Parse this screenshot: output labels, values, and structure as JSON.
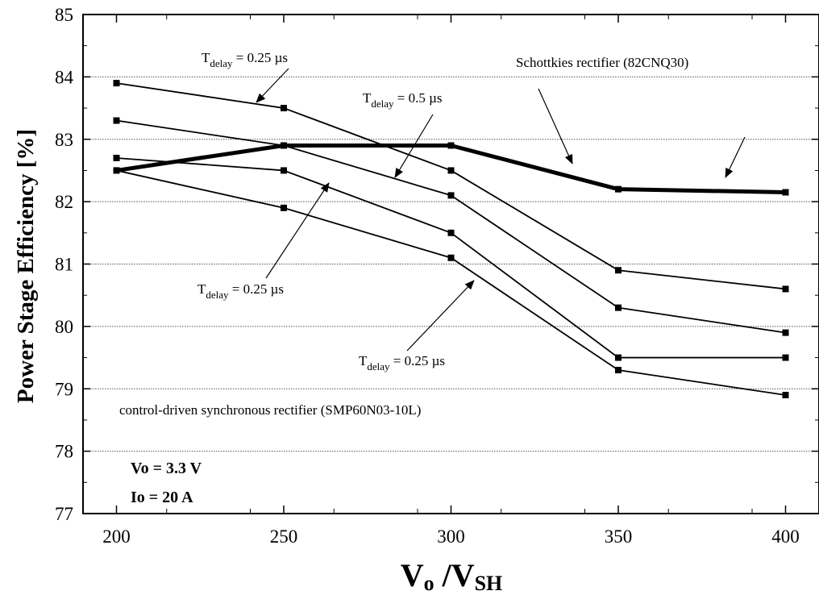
{
  "chart_data": {
    "type": "line",
    "x": [
      200,
      250,
      300,
      350,
      400
    ],
    "series": [
      {
        "values": [
          83.9,
          83.5,
          82.5,
          80.9,
          80.6
        ]
      },
      {
        "values": [
          83.3,
          82.9,
          82.1,
          80.3,
          79.9
        ]
      },
      {
        "values": [
          82.7,
          82.5,
          81.5,
          79.5,
          79.5
        ]
      },
      {
        "values": [
          82.5,
          81.9,
          81.1,
          79.3,
          78.9
        ]
      },
      {
        "values": [
          82.5,
          82.9,
          82.9,
          82.2,
          82.15
        ],
        "emphasis": "thick"
      }
    ],
    "xlim": [
      190,
      410
    ],
    "ylim": [
      77,
      85
    ],
    "x_ticks": [
      "200",
      "250",
      "300",
      "350",
      "400"
    ],
    "y_ticks": [
      "77",
      "78",
      "79",
      "80",
      "81",
      "82",
      "83",
      "84",
      "85"
    ],
    "grid": "horizontal",
    "ylabel": "Power Stage Efficiency [%]",
    "xlabel": {
      "main": "V",
      "sub1": "o",
      "sep": " /V",
      "sub2": "SH"
    },
    "annotations": {
      "t1": {
        "pre": "T",
        "sub": "delay",
        "post": " = 0.25  µs"
      },
      "t2": {
        "pre": "T",
        "sub": "delay",
        "post": " = 0.5  µs"
      },
      "t3": {
        "pre": "T",
        "sub": "delay",
        "post": " = 0.25  µs"
      },
      "t4": {
        "pre": "T",
        "sub": "delay",
        "post": " = 0.25  µs"
      },
      "schottky": "Schottkies rectifier (82CNQ30)",
      "sync": "control-driven synchronous rectifier (SMP60N03-10L)"
    },
    "conditions": [
      "Vo = 3.3 V",
      "Io = 20 A"
    ]
  }
}
